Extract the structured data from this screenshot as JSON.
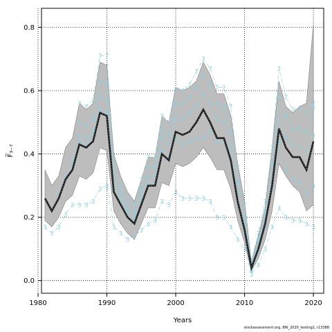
{
  "chart_data": {
    "type": "line",
    "xlabel": "Years",
    "ylabel": "F̅₃₋₇",
    "xlim": [
      1980.5,
      2021.5
    ],
    "ylim": [
      -0.04,
      0.86
    ],
    "x_ticks": [
      1980,
      1990,
      2000,
      2010,
      2020
    ],
    "y_ticks": [
      0.0,
      0.2,
      0.4,
      0.6,
      0.8
    ],
    "grid": true,
    "x": [
      1981,
      1982,
      1983,
      1984,
      1985,
      1986,
      1987,
      1988,
      1989,
      1990,
      1991,
      1992,
      1993,
      1994,
      1995,
      1996,
      1997,
      1998,
      1999,
      2000,
      2001,
      2002,
      2003,
      2004,
      2005,
      2006,
      2007,
      2008,
      2009,
      2010,
      2011,
      2012,
      2013,
      2014,
      2015,
      2016,
      2017,
      2018,
      2019,
      2020
    ],
    "series": [
      {
        "values": [
          0.26,
          0.22,
          0.26,
          0.32,
          0.35,
          0.43,
          0.42,
          0.44,
          0.53,
          0.52,
          0.28,
          0.24,
          0.2,
          0.18,
          0.24,
          0.3,
          0.3,
          0.4,
          0.38,
          0.47,
          0.46,
          0.47,
          0.5,
          0.54,
          0.5,
          0.45,
          0.45,
          0.38,
          0.25,
          0.16,
          0.04,
          0.1,
          0.18,
          0.3,
          0.48,
          0.42,
          0.39,
          0.39,
          0.35,
          0.44
        ]
      },
      {
        "values": [
          0.35,
          0.3,
          0.33,
          0.42,
          0.45,
          0.56,
          0.54,
          0.56,
          0.69,
          0.68,
          0.4,
          0.33,
          0.28,
          0.25,
          0.32,
          0.39,
          0.39,
          0.52,
          0.5,
          0.61,
          0.6,
          0.61,
          0.63,
          0.69,
          0.65,
          0.59,
          0.59,
          0.52,
          0.37,
          0.25,
          0.06,
          0.14,
          0.23,
          0.42,
          0.63,
          0.55,
          0.53,
          0.55,
          0.56,
          0.81
        ]
      },
      {
        "values": [
          0.19,
          0.17,
          0.2,
          0.25,
          0.27,
          0.33,
          0.32,
          0.34,
          0.42,
          0.41,
          0.22,
          0.18,
          0.15,
          0.13,
          0.18,
          0.23,
          0.23,
          0.31,
          0.3,
          0.37,
          0.36,
          0.37,
          0.39,
          0.42,
          0.39,
          0.35,
          0.35,
          0.29,
          0.19,
          0.12,
          0.03,
          0.07,
          0.13,
          0.22,
          0.37,
          0.33,
          0.3,
          0.28,
          0.22,
          0.24
        ]
      }
    ],
    "retro_series": [
      {
        "label": "3",
        "color": "#8ecfe0",
        "x": [
          1981,
          1982,
          1983,
          1984,
          1985,
          1986,
          1987,
          1988,
          1989,
          1990,
          1991,
          1992,
          1993,
          1994,
          1995,
          1996,
          1997,
          1998,
          1999,
          2000,
          2001,
          2002,
          2003,
          2004,
          2005,
          2006,
          2007,
          2008,
          2009,
          2010,
          2011,
          2012,
          2013,
          2014,
          2015,
          2016,
          2017,
          2018,
          2019,
          2020
        ],
        "values": [
          0.17,
          0.15,
          0.17,
          0.21,
          0.24,
          0.24,
          0.24,
          0.25,
          0.29,
          0.3,
          0.17,
          0.15,
          0.13,
          0.14,
          0.16,
          0.18,
          0.19,
          0.25,
          0.24,
          0.28,
          0.26,
          0.26,
          0.26,
          0.26,
          0.25,
          0.2,
          0.2,
          0.17,
          0.13,
          0.1,
          0.02,
          0.05,
          0.1,
          0.17,
          0.23,
          0.2,
          0.19,
          0.19,
          0.18,
          0.17
        ]
      },
      {
        "label": "4",
        "color": "#8ecfe0",
        "x": [
          1983,
          1984,
          1985,
          1986,
          1987,
          1988,
          1989,
          1990,
          1991,
          1992,
          1993,
          1994,
          1995,
          1996,
          1997,
          1998,
          1999,
          2000,
          2001,
          2002,
          2003,
          2004,
          2005,
          2006,
          2007,
          2008,
          2009,
          2010,
          2011,
          2012,
          2013,
          2014,
          2015,
          2016,
          2017,
          2018,
          2019,
          2020
        ],
        "values": [
          0.27,
          0.33,
          0.36,
          0.44,
          0.43,
          0.45,
          0.54,
          0.53,
          0.29,
          0.25,
          0.21,
          0.19,
          0.25,
          0.31,
          0.31,
          0.41,
          0.39,
          0.45,
          0.43,
          0.44,
          0.45,
          0.45,
          0.47,
          0.44,
          0.44,
          0.37,
          0.24,
          0.15,
          0.03,
          0.09,
          0.17,
          0.29,
          0.44,
          0.35,
          0.32,
          0.31,
          0.27,
          0.3
        ]
      },
      {
        "label": "5",
        "color": "#8ecfe0",
        "x": [
          1985,
          1986,
          1987,
          1988,
          1989,
          1990,
          1991,
          1992,
          1993,
          1994,
          1995,
          1996,
          1997,
          1998,
          1999,
          2000,
          2001,
          2002,
          2003,
          2004,
          2005,
          2006,
          2007,
          2008,
          2009,
          2010,
          2011,
          2012,
          2013,
          2014,
          2015,
          2016,
          2017,
          2018,
          2019,
          2020
        ],
        "values": [
          0.38,
          0.46,
          0.45,
          0.47,
          0.58,
          0.57,
          0.31,
          0.26,
          0.22,
          0.2,
          0.27,
          0.33,
          0.33,
          0.45,
          0.43,
          0.51,
          0.51,
          0.53,
          0.55,
          0.59,
          0.56,
          0.51,
          0.5,
          0.42,
          0.28,
          0.18,
          0.05,
          0.12,
          0.2,
          0.32,
          0.51,
          0.45,
          0.43,
          0.42,
          0.41,
          0.46
        ]
      },
      {
        "label": "6",
        "color": "#8ecfe0",
        "x": [
          1986,
          1987,
          1988,
          1989,
          1990,
          1991,
          1992,
          1993,
          1994,
          1995,
          1996,
          1997,
          1998,
          1999,
          2000,
          2001,
          2002,
          2003,
          2004,
          2005,
          2006,
          2007,
          2008,
          2009,
          2010,
          2011,
          2012,
          2013,
          2014,
          2015,
          2016,
          2017,
          2018,
          2019,
          2020
        ],
        "values": [
          0.5,
          0.49,
          0.51,
          0.63,
          0.62,
          0.34,
          0.28,
          0.24,
          0.22,
          0.29,
          0.36,
          0.36,
          0.48,
          0.46,
          0.56,
          0.56,
          0.58,
          0.61,
          0.65,
          0.62,
          0.56,
          0.55,
          0.47,
          0.31,
          0.2,
          0.05,
          0.13,
          0.22,
          0.37,
          0.58,
          0.52,
          0.48,
          0.48,
          0.47,
          0.55
        ]
      },
      {
        "label": "7",
        "color": "#8ecfe0",
        "x": [
          1986,
          1987,
          1988,
          1989,
          1990,
          1991,
          1992,
          1993,
          1994,
          1995,
          1996,
          1997,
          1998,
          1999,
          2000,
          2001,
          2002,
          2003,
          2004,
          2005,
          2006,
          2007,
          2008,
          2009,
          2010,
          2011,
          2012,
          2013,
          2014,
          2015,
          2016,
          2017,
          2018,
          2019,
          2020
        ],
        "values": [
          0.56,
          0.55,
          0.57,
          0.71,
          0.71,
          0.37,
          0.3,
          0.26,
          0.24,
          0.32,
          0.39,
          0.39,
          0.52,
          0.5,
          0.6,
          0.6,
          0.62,
          0.66,
          0.7,
          0.67,
          0.61,
          0.61,
          0.55,
          0.36,
          0.24,
          0.06,
          0.15,
          0.25,
          0.42,
          0.67,
          0.58,
          0.54,
          0.54,
          0.53,
          0.56
        ]
      }
    ],
    "colors": {
      "band": "#bdbdbd",
      "band_edge": "#7f7f7f",
      "main_line": "#1a1a1a",
      "retro": "#8ecfe0",
      "grid": "#000000"
    }
  },
  "footer": "stockassessment.org, BW_2020_testing2, r13388"
}
